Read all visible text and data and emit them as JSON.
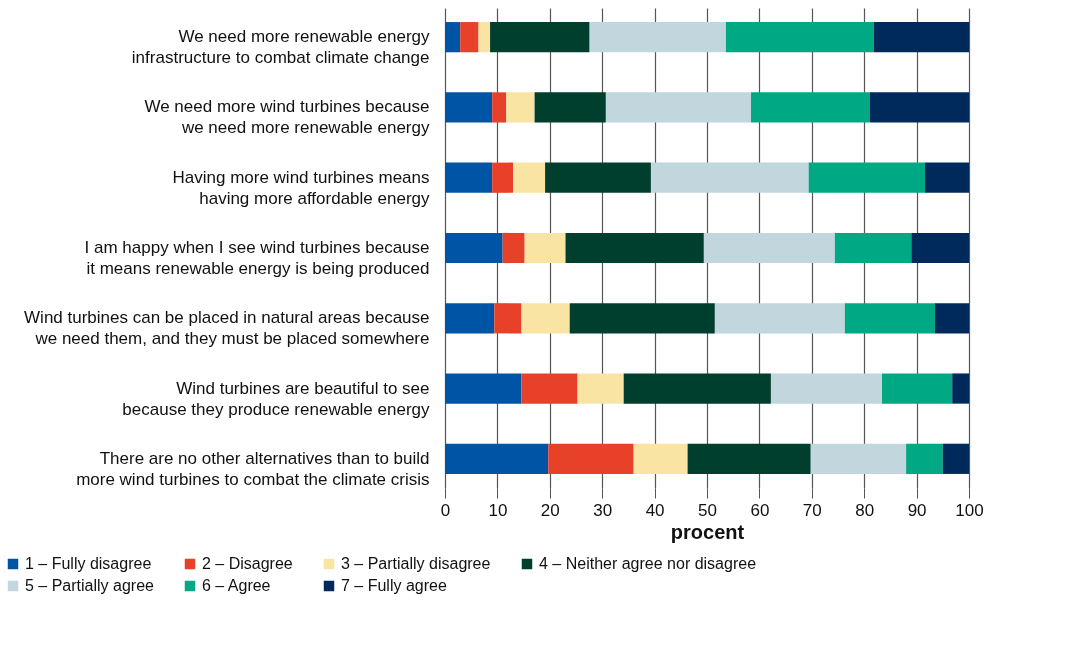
{
  "chart_data": {
    "type": "bar",
    "orientation": "horizontal",
    "stacked": true,
    "xlabel": "procent",
    "categories": [
      "We need more renewable energy infrastructure to combat climate change",
      "We need more wind turbines because we need more renewable energy",
      "Having more wind turbines means having more affordable energy",
      "I am happy when I see wind turbines because it means renewable energy is being produced",
      "Wind turbines can be placed in natural areas because we need them, and they must be placed somewhere",
      "Wind turbines are beautiful to see because they produce renewable energy",
      "There are no other alternatives than to build more wind turbines to combat the climate crisis"
    ],
    "series": [
      {
        "name": "1 – Fully disagree",
        "color": "#0054a6",
        "values": [
          2.9,
          9.0,
          9.0,
          11.0,
          9.4,
          14.6,
          19.7
        ]
      },
      {
        "name": "2 – Disagree",
        "color": "#e8412a",
        "values": [
          3.5,
          2.7,
          4.0,
          4.2,
          5.2,
          10.7,
          16.3
        ]
      },
      {
        "name": "3 – Partially disagree",
        "color": "#f9e4a3",
        "values": [
          2.2,
          5.4,
          6.1,
          7.8,
          9.2,
          8.8,
          10.3
        ]
      },
      {
        "name": "4 – Neither agree nor disagree",
        "color": "#003f2d",
        "values": [
          19.0,
          13.6,
          20.2,
          26.4,
          27.7,
          28.1,
          23.5
        ]
      },
      {
        "name": "5 – Partially agree",
        "color": "#c2d6dd",
        "values": [
          26.0,
          27.7,
          30.1,
          25.0,
          24.8,
          21.2,
          18.2
        ]
      },
      {
        "name": "6 – Agree",
        "color": "#00a884",
        "values": [
          28.2,
          22.7,
          22.2,
          14.6,
          17.2,
          13.4,
          7.0
        ]
      },
      {
        "name": "7 – Fully agree",
        "color": "#002a5c",
        "values": [
          18.2,
          18.9,
          8.4,
          11.0,
          6.5,
          3.2,
          5.0
        ]
      }
    ],
    "xlim": [
      0,
      100
    ],
    "xticks": [
      0,
      10,
      20,
      30,
      40,
      50,
      60,
      70,
      80,
      90,
      100
    ],
    "grid": "x",
    "legend": "bottom"
  }
}
